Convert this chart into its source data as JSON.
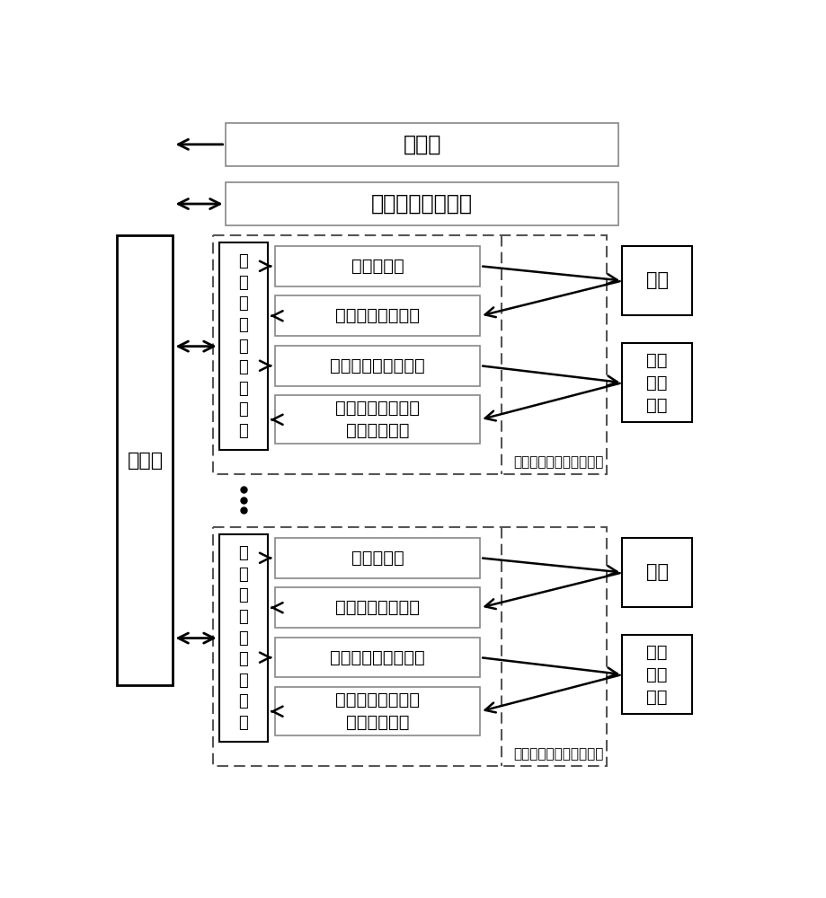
{
  "switcher_label": "交换机",
  "substation_label": "变电站",
  "control_module_label": "无功电压控制模块",
  "data_proc_label": "风\n电\n场\n数\n据\n处\n理\n模\n块",
  "fan_ctrl_label": "风机控制器",
  "fan_param_label": "风机参数采集装置",
  "reactive_ctrl_label": "无功补偿设备控制器",
  "reactive_collect_label": "无功补偿设备无功\n功率采集装置",
  "wind_farm_label": "风电场无功电压控制装置",
  "fan_box_label": "风机",
  "reactive_equip_label": "无功\n补偿\n设备"
}
